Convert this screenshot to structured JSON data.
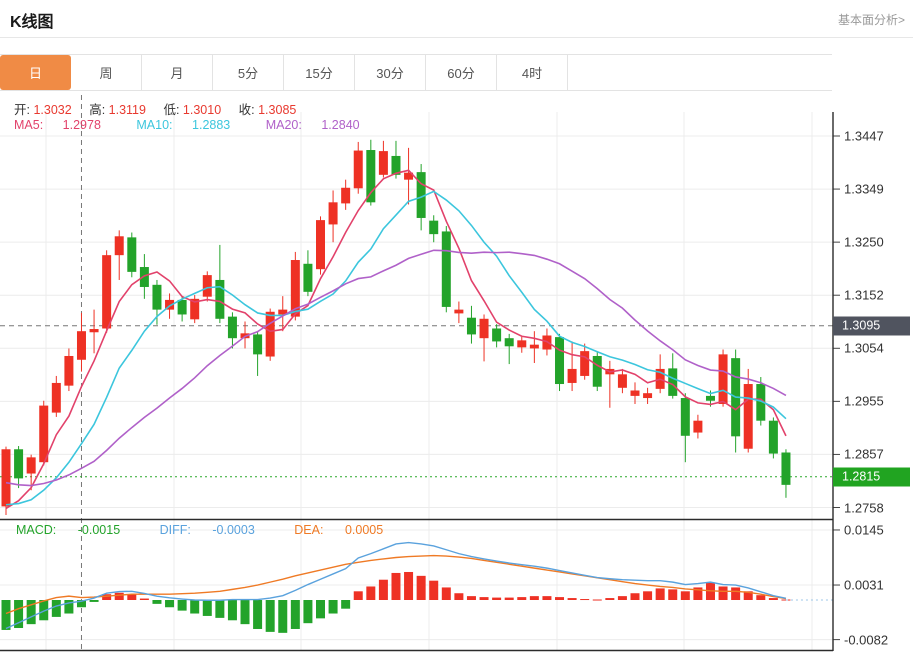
{
  "header": {
    "title": "K线图",
    "link": "基本面分析>"
  },
  "tabs": {
    "items": [
      "日",
      "周",
      "月",
      "5分",
      "15分",
      "30分",
      "60分",
      "4时"
    ],
    "active_index": 0
  },
  "legend": {
    "open_label": "开:",
    "open": "1.3032",
    "high_label": "高:",
    "high": "1.3119",
    "low_label": "低:",
    "low": "1.3010",
    "close_label": "收:",
    "close": "1.3085",
    "ma5_label": "MA5:",
    "ma5": "1.2978",
    "ma10_label": "MA10:",
    "ma10": "1.2883",
    "ma20_label": "MA20:",
    "ma20": "1.2840"
  },
  "macd_legend": {
    "macd_label": "MACD:",
    "macd": "-0.0015",
    "diff_label": "DIFF:",
    "diff": "-0.0003",
    "dea_label": "DEA:",
    "dea": "0.0005"
  },
  "colors": {
    "up": "#ee3124",
    "down": "#23a32a",
    "ma5": "#e2426b",
    "ma10": "#3cc6dd",
    "ma20": "#b061c9",
    "diff_line": "#5aa2dd",
    "dea_line": "#ef7a25",
    "tab_active": "#f08b45",
    "badge_dark": "#50545f",
    "badge_green": "#21a421",
    "grid": "#ececec",
    "frame": "#2b2b2b",
    "crosshair": "#777777",
    "last_price_line": "#2aa82a"
  },
  "chart_data": {
    "type": "candlestick",
    "title": "K线图",
    "period": "日",
    "selected_candle": {
      "index": 6,
      "open": 1.3032,
      "high": 1.3119,
      "low": 1.301,
      "close": 1.3085
    },
    "crosshair_price": 1.3095,
    "crosshair_price_label": "1.3095",
    "last_price": 1.2815,
    "last_price_label": "1.2815",
    "y_axis": {
      "labels": [
        "1.3447",
        "1.3349",
        "1.3250",
        "1.3152",
        "1.3054",
        "1.2955",
        "1.2857",
        "1.2758"
      ],
      "max": 1.3447,
      "min": 1.2758
    },
    "candles_ohlc": [
      [
        1.276,
        1.2871,
        1.2744,
        1.2866
      ],
      [
        1.2866,
        1.2872,
        1.2794,
        1.2812
      ],
      [
        1.2821,
        1.2856,
        1.279,
        1.2851
      ],
      [
        1.2842,
        1.2956,
        1.2836,
        1.2947
      ],
      [
        1.2934,
        1.3002,
        1.2926,
        1.2989
      ],
      [
        1.2984,
        1.3053,
        1.2974,
        1.3039
      ],
      [
        1.3032,
        1.3119,
        1.301,
        1.3085
      ],
      [
        1.3083,
        1.3125,
        1.3044,
        1.3089
      ],
      [
        1.309,
        1.3235,
        1.3082,
        1.3226
      ],
      [
        1.3226,
        1.3272,
        1.318,
        1.3261
      ],
      [
        1.3259,
        1.3268,
        1.3185,
        1.3195
      ],
      [
        1.3204,
        1.3228,
        1.3145,
        1.3167
      ],
      [
        1.3171,
        1.318,
        1.3097,
        1.3125
      ],
      [
        1.3125,
        1.3155,
        1.3108,
        1.3143
      ],
      [
        1.3143,
        1.315,
        1.3103,
        1.3116
      ],
      [
        1.3107,
        1.3152,
        1.31,
        1.3145
      ],
      [
        1.3149,
        1.3196,
        1.314,
        1.3189
      ],
      [
        1.318,
        1.3245,
        1.31,
        1.3108
      ],
      [
        1.3112,
        1.312,
        1.3053,
        1.3072
      ],
      [
        1.3072,
        1.3103,
        1.3053,
        1.3081
      ],
      [
        1.3079,
        1.3085,
        1.3002,
        1.3042
      ],
      [
        1.3038,
        1.3127,
        1.303,
        1.3121
      ],
      [
        1.3116,
        1.315,
        1.3085,
        1.3125
      ],
      [
        1.3112,
        1.3232,
        1.3105,
        1.3217
      ],
      [
        1.321,
        1.3235,
        1.315,
        1.3158
      ],
      [
        1.32,
        1.3298,
        1.319,
        1.3291
      ],
      [
        1.3283,
        1.3346,
        1.325,
        1.3324
      ],
      [
        1.3322,
        1.3366,
        1.331,
        1.3351
      ],
      [
        1.335,
        1.3436,
        1.334,
        1.342
      ],
      [
        1.3421,
        1.344,
        1.3318,
        1.3324
      ],
      [
        1.3375,
        1.3438,
        1.337,
        1.3419
      ],
      [
        1.341,
        1.3438,
        1.3368,
        1.3375
      ],
      [
        1.3366,
        1.3425,
        1.332,
        1.3379
      ],
      [
        1.338,
        1.3395,
        1.3272,
        1.3295
      ],
      [
        1.329,
        1.33,
        1.325,
        1.3265
      ],
      [
        1.327,
        1.328,
        1.312,
        1.313
      ],
      [
        1.3118,
        1.314,
        1.31,
        1.3125
      ],
      [
        1.311,
        1.3132,
        1.3062,
        1.3079
      ],
      [
        1.3072,
        1.3116,
        1.3029,
        1.3108
      ],
      [
        1.309,
        1.3098,
        1.3055,
        1.3066
      ],
      [
        1.3072,
        1.308,
        1.3024,
        1.3057
      ],
      [
        1.3055,
        1.3075,
        1.3045,
        1.3068
      ],
      [
        1.3053,
        1.3085,
        1.3026,
        1.306
      ],
      [
        1.3051,
        1.309,
        1.304,
        1.3077
      ],
      [
        1.3074,
        1.308,
        1.2974,
        1.2987
      ],
      [
        1.2989,
        1.3066,
        1.2974,
        1.3015
      ],
      [
        1.3002,
        1.3062,
        1.2995,
        1.3048
      ],
      [
        1.3039,
        1.3048,
        1.2974,
        1.2982
      ],
      [
        1.3005,
        1.303,
        1.2943,
        1.3015
      ],
      [
        1.298,
        1.3015,
        1.297,
        1.3005
      ],
      [
        1.2965,
        1.299,
        1.295,
        1.2975
      ],
      [
        1.2961,
        1.298,
        1.295,
        1.297
      ],
      [
        1.2978,
        1.3042,
        1.297,
        1.3015
      ],
      [
        1.3016,
        1.3044,
        1.296,
        1.2965
      ],
      [
        1.2961,
        1.297,
        1.2842,
        1.2891
      ],
      [
        1.2897,
        1.293,
        1.2886,
        1.2919
      ],
      [
        1.2965,
        1.2975,
        1.2945,
        1.2956
      ],
      [
        1.295,
        1.3051,
        1.2945,
        1.3042
      ],
      [
        1.3035,
        1.3051,
        1.286,
        1.289
      ],
      [
        1.2867,
        1.3015,
        1.286,
        1.2987
      ],
      [
        1.2987,
        1.3,
        1.291,
        1.2919
      ],
      [
        1.2919,
        1.2925,
        1.2849,
        1.2858
      ],
      [
        1.286,
        1.2866,
        1.2776,
        1.28
      ]
    ],
    "ma": {
      "periods": [
        5,
        10,
        20
      ],
      "seed_closes": [
        1.29,
        1.289,
        1.288,
        1.287,
        1.286,
        1.285,
        1.284,
        1.283,
        1.282,
        1.281,
        1.28,
        1.279,
        1.278,
        1.277,
        1.276,
        1.275,
        1.274,
        1.273,
        1.2725,
        1.272
      ]
    },
    "macd": {
      "axis_labels": [
        "0.0145",
        "0.0031",
        "-0.0082"
      ],
      "axis_values": [
        0.0145,
        0.0031,
        -0.0082
      ],
      "hist": [
        -0.0062,
        -0.0058,
        -0.005,
        -0.0042,
        -0.0035,
        -0.0028,
        -0.0015,
        -0.0004,
        0.0012,
        0.0015,
        0.0012,
        0.0003,
        -0.0008,
        -0.0015,
        -0.0022,
        -0.0028,
        -0.0033,
        -0.0037,
        -0.0042,
        -0.005,
        -0.006,
        -0.0066,
        -0.0068,
        -0.006,
        -0.0048,
        -0.0038,
        -0.0028,
        -0.0018,
        0.0018,
        0.0028,
        0.0042,
        0.0056,
        0.0058,
        0.005,
        0.004,
        0.0026,
        0.0014,
        0.0008,
        0.0006,
        0.0005,
        0.0005,
        0.0006,
        0.0008,
        0.0008,
        0.0006,
        0.0004,
        0.0002,
        0.0001,
        0.0004,
        0.0008,
        0.0014,
        0.0018,
        0.0024,
        0.0022,
        0.0018,
        0.0026,
        0.0036,
        0.0028,
        0.0026,
        0.0018,
        0.001,
        0.0004,
        0.0001
      ],
      "dea": [
        -0.0028,
        -0.0018,
        -0.001,
        -0.0002,
        0.0005,
        0.0008,
        0.0005,
        0.0006,
        0.0008,
        0.001,
        0.0012,
        0.0012,
        0.0012,
        0.0012,
        0.0013,
        0.0014,
        0.0016,
        0.0018,
        0.0022,
        0.0026,
        0.0031,
        0.0037,
        0.0043,
        0.005,
        0.0056,
        0.0062,
        0.0068,
        0.0074,
        0.0078,
        0.0082,
        0.0085,
        0.0088,
        0.009,
        0.0091,
        0.0092,
        0.0091,
        0.0089,
        0.0086,
        0.0082,
        0.0078,
        0.0074,
        0.007,
        0.0066,
        0.0062,
        0.0058,
        0.0054,
        0.005,
        0.0046,
        0.0042,
        0.0038,
        0.0034,
        0.0031,
        0.0028,
        0.0026,
        0.0023,
        0.0021,
        0.0019,
        0.0018,
        0.0018,
        0.0016,
        0.0012,
        0.0007,
        0.0003
      ]
    }
  }
}
